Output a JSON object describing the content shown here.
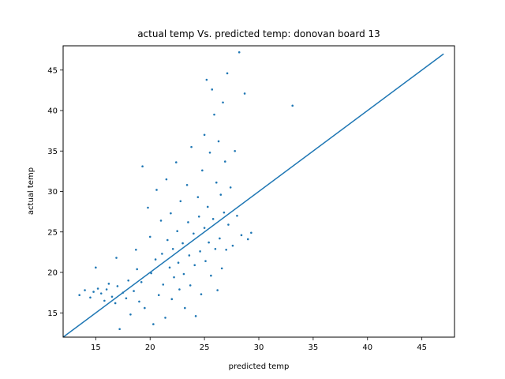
{
  "chart_data": {
    "type": "scatter",
    "title": "actual temp Vs. predicted temp: donovan board 13",
    "xlabel": "predicted temp",
    "ylabel": "actual temp",
    "xlim": [
      12,
      48
    ],
    "ylim": [
      12,
      48
    ],
    "xticks": [
      15,
      20,
      25,
      30,
      35,
      40,
      45
    ],
    "yticks": [
      15,
      20,
      25,
      30,
      35,
      40,
      45
    ],
    "grid": false,
    "legend": "none",
    "colors": {
      "series": "#1f77b4",
      "axes": "#000000"
    },
    "series": [
      {
        "kind": "points",
        "points": [
          [
            13.5,
            17.2
          ],
          [
            14.0,
            17.8
          ],
          [
            14.5,
            16.9
          ],
          [
            14.8,
            17.6
          ],
          [
            15.0,
            20.6
          ],
          [
            15.2,
            18.0
          ],
          [
            15.5,
            17.4
          ],
          [
            15.8,
            16.5
          ],
          [
            16.0,
            17.9
          ],
          [
            16.2,
            18.6
          ],
          [
            16.5,
            17.0
          ],
          [
            16.8,
            16.2
          ],
          [
            16.9,
            21.8
          ],
          [
            17.0,
            18.3
          ],
          [
            17.2,
            13.0
          ],
          [
            17.5,
            17.5
          ],
          [
            17.8,
            16.8
          ],
          [
            18.0,
            19.0
          ],
          [
            18.2,
            14.8
          ],
          [
            18.5,
            17.7
          ],
          [
            18.7,
            22.8
          ],
          [
            18.8,
            20.4
          ],
          [
            19.0,
            16.4
          ],
          [
            19.2,
            18.8
          ],
          [
            19.3,
            33.1
          ],
          [
            19.5,
            15.6
          ],
          [
            19.8,
            28.0
          ],
          [
            20.0,
            24.4
          ],
          [
            20.1,
            19.9
          ],
          [
            20.3,
            13.6
          ],
          [
            20.5,
            21.6
          ],
          [
            20.6,
            30.2
          ],
          [
            20.8,
            17.2
          ],
          [
            21.0,
            26.4
          ],
          [
            21.1,
            22.3
          ],
          [
            21.2,
            18.5
          ],
          [
            21.4,
            14.4
          ],
          [
            21.5,
            31.5
          ],
          [
            21.6,
            24.0
          ],
          [
            21.8,
            20.6
          ],
          [
            21.9,
            27.3
          ],
          [
            22.0,
            16.7
          ],
          [
            22.1,
            22.9
          ],
          [
            22.2,
            19.4
          ],
          [
            22.4,
            33.6
          ],
          [
            22.5,
            25.1
          ],
          [
            22.6,
            21.2
          ],
          [
            22.7,
            17.9
          ],
          [
            22.8,
            28.8
          ],
          [
            23.0,
            23.6
          ],
          [
            23.1,
            19.8
          ],
          [
            23.2,
            15.6
          ],
          [
            23.4,
            30.8
          ],
          [
            23.5,
            26.2
          ],
          [
            23.6,
            22.1
          ],
          [
            23.7,
            18.4
          ],
          [
            23.8,
            35.5
          ],
          [
            24.0,
            24.8
          ],
          [
            24.1,
            20.9
          ],
          [
            24.2,
            14.6
          ],
          [
            24.4,
            29.3
          ],
          [
            24.5,
            26.9
          ],
          [
            24.6,
            22.6
          ],
          [
            24.7,
            17.3
          ],
          [
            24.8,
            32.6
          ],
          [
            25.0,
            25.5
          ],
          [
            25.0,
            37.0
          ],
          [
            25.1,
            21.4
          ],
          [
            25.2,
            43.8
          ],
          [
            25.3,
            28.1
          ],
          [
            25.4,
            23.7
          ],
          [
            25.5,
            34.8
          ],
          [
            25.6,
            19.6
          ],
          [
            25.7,
            42.6
          ],
          [
            25.8,
            26.6
          ],
          [
            25.9,
            39.5
          ],
          [
            26.0,
            22.9
          ],
          [
            26.1,
            31.1
          ],
          [
            26.2,
            17.8
          ],
          [
            26.3,
            36.2
          ],
          [
            26.4,
            24.2
          ],
          [
            26.5,
            29.6
          ],
          [
            26.6,
            20.5
          ],
          [
            26.7,
            41.0
          ],
          [
            26.8,
            27.4
          ],
          [
            26.9,
            33.7
          ],
          [
            27.0,
            22.8
          ],
          [
            27.1,
            44.6
          ],
          [
            27.2,
            25.9
          ],
          [
            27.4,
            30.5
          ],
          [
            27.6,
            23.3
          ],
          [
            27.8,
            35.0
          ],
          [
            28.0,
            27.0
          ],
          [
            28.2,
            47.2
          ],
          [
            28.4,
            24.6
          ],
          [
            28.7,
            42.1
          ],
          [
            29.0,
            24.1
          ],
          [
            29.3,
            24.9
          ],
          [
            33.1,
            40.6
          ]
        ]
      },
      {
        "kind": "line",
        "points": [
          [
            12,
            12
          ],
          [
            47,
            47
          ]
        ]
      }
    ]
  }
}
